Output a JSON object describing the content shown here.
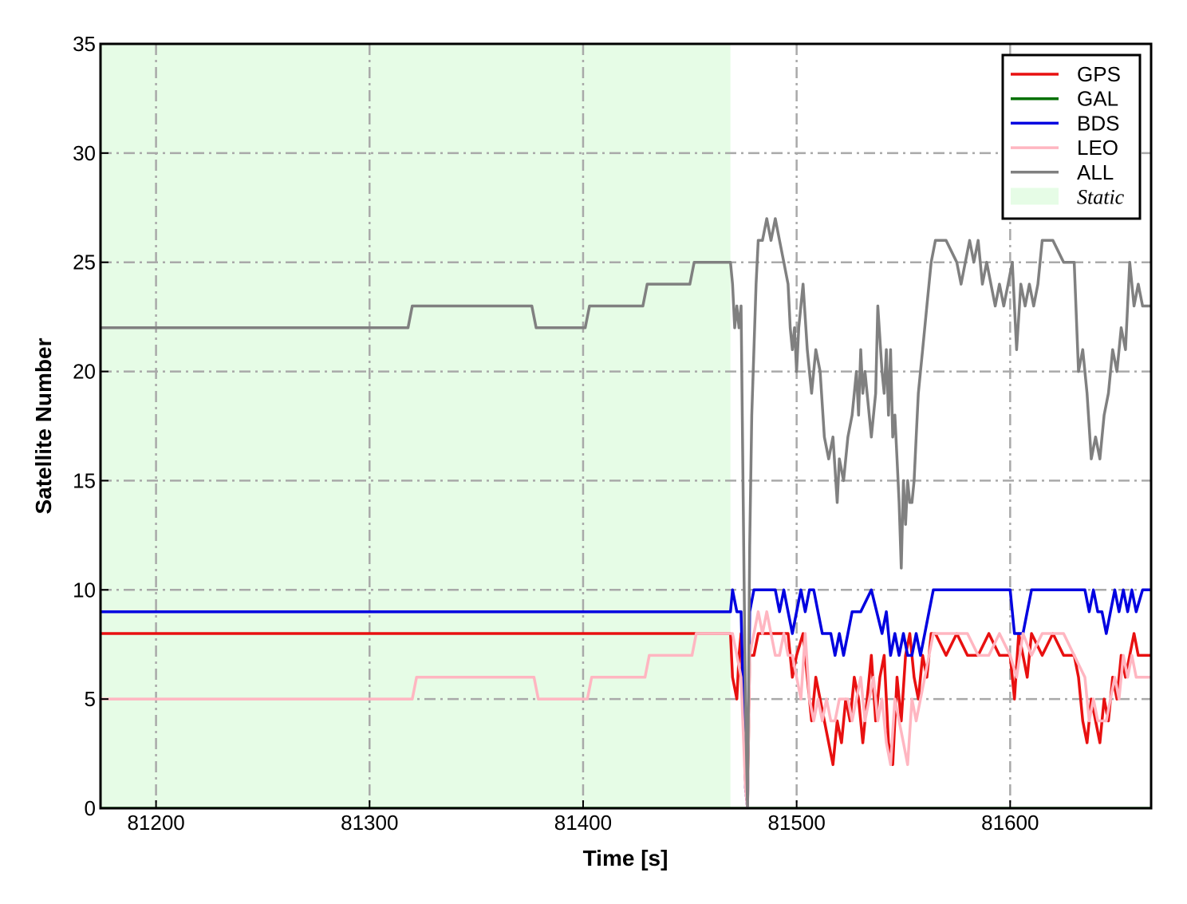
{
  "chart_data": {
    "type": "line",
    "title": "",
    "xlabel": "Time [s]",
    "ylabel": "Satellite Number",
    "xlim": [
      81174,
      81666
    ],
    "ylim": [
      0,
      35
    ],
    "xticks": [
      81200,
      81300,
      81400,
      81500,
      81600
    ],
    "yticks": [
      0,
      5,
      10,
      15,
      20,
      25,
      30,
      35
    ],
    "grid": true,
    "legend_position": "top-right",
    "shaded_region": {
      "name": "Static",
      "x": [
        81174,
        81469
      ],
      "color": "#e6fce6"
    },
    "series": [
      {
        "name": "GPS",
        "color": "#e81010",
        "x": [
          81174,
          81469,
          81470,
          81472,
          81473,
          81474,
          81476,
          81477,
          81478,
          81480,
          81482,
          81485,
          81488,
          81492,
          81496,
          81498,
          81500,
          81503,
          81505,
          81507,
          81509,
          81511,
          81513,
          81515,
          81517,
          81519,
          81521,
          81523,
          81525,
          81527,
          81529,
          81531,
          81533,
          81535,
          81537,
          81539,
          81541,
          81543,
          81545,
          81547,
          81549,
          81551,
          81553,
          81555,
          81557,
          81559,
          81561,
          81563,
          81565,
          81570,
          81575,
          81580,
          81585,
          81590,
          81595,
          81600,
          81602,
          81604,
          81606,
          81608,
          81610,
          81615,
          81620,
          81625,
          81630,
          81632,
          81634,
          81636,
          81638,
          81640,
          81642,
          81644,
          81646,
          81648,
          81650,
          81652,
          81654,
          81656,
          81658,
          81660,
          81662,
          81666
        ],
        "y": [
          8,
          8,
          6,
          5,
          7,
          8,
          1,
          0,
          7,
          7,
          8,
          8,
          8,
          8,
          8,
          6,
          7,
          8,
          6,
          4,
          6,
          5,
          4,
          3,
          2,
          4,
          3,
          5,
          4,
          6,
          5,
          3,
          5,
          7,
          4,
          6,
          7,
          3,
          2,
          6,
          4,
          7,
          8,
          6,
          5,
          7,
          6,
          8,
          8,
          7,
          8,
          7,
          7,
          8,
          7,
          7,
          5,
          8,
          7,
          6,
          8,
          7,
          8,
          7,
          7,
          6,
          4,
          3,
          5,
          4,
          3,
          5,
          4,
          6,
          5,
          7,
          6,
          7,
          8,
          7,
          7,
          7
        ]
      },
      {
        "name": "GAL",
        "color": "#007000",
        "x": [
          81174,
          81666
        ],
        "y": [
          0,
          0
        ]
      },
      {
        "name": "BDS",
        "color": "#0000e0",
        "x": [
          81174,
          81469,
          81470,
          81472,
          81474,
          81476,
          81477,
          81478,
          81480,
          81484,
          81490,
          81492,
          81494,
          81496,
          81498,
          81500,
          81502,
          81504,
          81506,
          81508,
          81510,
          81512,
          81514,
          81516,
          81518,
          81520,
          81522,
          81524,
          81526,
          81528,
          81530,
          81535,
          81540,
          81542,
          81544,
          81546,
          81548,
          81550,
          81552,
          81554,
          81556,
          81558,
          81560,
          81562,
          81564,
          81570,
          81580,
          81590,
          81600,
          81602,
          81606,
          81608,
          81610,
          81615,
          81620,
          81625,
          81630,
          81635,
          81637,
          81639,
          81641,
          81643,
          81645,
          81647,
          81649,
          81651,
          81653,
          81655,
          81657,
          81659,
          81662,
          81666
        ],
        "y": [
          9,
          9,
          10,
          9,
          9,
          1,
          0,
          9,
          10,
          10,
          10,
          9,
          10,
          9,
          8,
          9,
          10,
          9,
          10,
          10,
          9,
          8,
          8,
          8,
          7,
          8,
          7,
          8,
          9,
          9,
          9,
          10,
          8,
          9,
          7,
          8,
          7,
          8,
          7,
          7,
          8,
          7,
          8,
          9,
          10,
          10,
          10,
          10,
          10,
          8,
          8,
          9,
          10,
          10,
          10,
          10,
          10,
          10,
          9,
          10,
          9,
          9,
          8,
          9,
          10,
          9,
          10,
          9,
          10,
          9,
          10,
          10
        ]
      },
      {
        "name": "LEO",
        "color": "#ffb6c1",
        "x": [
          81174,
          81320,
          81322,
          81377,
          81379,
          81402,
          81404,
          81429,
          81431,
          81451,
          81453,
          81469,
          81470,
          81472,
          81474,
          81476,
          81477,
          81478,
          81480,
          81482,
          81484,
          81486,
          81488,
          81490,
          81492,
          81494,
          81496,
          81498,
          81500,
          81502,
          81504,
          81506,
          81508,
          81510,
          81512,
          81514,
          81516,
          81518,
          81520,
          81522,
          81524,
          81526,
          81528,
          81530,
          81532,
          81534,
          81536,
          81538,
          81540,
          81542,
          81544,
          81546,
          81548,
          81550,
          81552,
          81554,
          81556,
          81558,
          81560,
          81562,
          81564,
          81566,
          81570,
          81575,
          81580,
          81585,
          81590,
          81595,
          81600,
          81603,
          81606,
          81610,
          81615,
          81620,
          81625,
          81630,
          81635,
          81637,
          81639,
          81641,
          81643,
          81645,
          81647,
          81649,
          81651,
          81653,
          81655,
          81657,
          81659,
          81662,
          81666
        ],
        "y": [
          5,
          5,
          6,
          6,
          5,
          5,
          6,
          6,
          7,
          7,
          8,
          8,
          8,
          7,
          6,
          1,
          0,
          7,
          8,
          9,
          8,
          9,
          8,
          7,
          7,
          8,
          7,
          7,
          6,
          5,
          8,
          5,
          4,
          5,
          4,
          5,
          4,
          4,
          5,
          5,
          5,
          4,
          5,
          6,
          4,
          5,
          6,
          4,
          5,
          3,
          2,
          5,
          4,
          3,
          2,
          5,
          4,
          5,
          6,
          7,
          8,
          8,
          8,
          8,
          8,
          7,
          7,
          8,
          7,
          6,
          8,
          7,
          8,
          8,
          8,
          7,
          6,
          4,
          5,
          4,
          4,
          4,
          5,
          6,
          5,
          7,
          6,
          7,
          6,
          6,
          6
        ]
      },
      {
        "name": "ALL",
        "color": "#808080",
        "x": [
          81174,
          81318,
          81320,
          81376,
          81378,
          81401,
          81403,
          81428,
          81430,
          81450,
          81452,
          81469,
          81470,
          81471,
          81472,
          81473,
          81474,
          81476,
          81477,
          81478,
          81479,
          81480,
          81481,
          81482,
          81484,
          81486,
          81488,
          81490,
          81492,
          81494,
          81496,
          81497,
          81498,
          81499,
          81500,
          81501,
          81503,
          81505,
          81507,
          81509,
          81511,
          81513,
          81515,
          81517,
          81519,
          81520,
          81522,
          81524,
          81526,
          81528,
          81529,
          81530,
          81531,
          81532,
          81533,
          81535,
          81537,
          81538,
          81540,
          81541,
          81542,
          81543,
          81544,
          81545,
          81546,
          81547,
          81548,
          81549,
          81550,
          81551,
          81552,
          81553,
          81554,
          81555,
          81556,
          81557,
          81559,
          81561,
          81563,
          81565,
          81570,
          81575,
          81577,
          81579,
          81581,
          81583,
          81585,
          81587,
          81589,
          81591,
          81593,
          81595,
          81597,
          81599,
          81601,
          81603,
          81605,
          81607,
          81609,
          81611,
          81613,
          81615,
          81620,
          81625,
          81630,
          81632,
          81634,
          81636,
          81638,
          81640,
          81642,
          81644,
          81646,
          81648,
          81650,
          81652,
          81654,
          81656,
          81658,
          81660,
          81662,
          81666
        ],
        "y": [
          22,
          22,
          23,
          23,
          22,
          22,
          23,
          23,
          24,
          24,
          25,
          25,
          24,
          22,
          23,
          22,
          23,
          5,
          0,
          12,
          18,
          21,
          24,
          26,
          26,
          27,
          26,
          27,
          26,
          25,
          24,
          22,
          21,
          22,
          20,
          22,
          24,
          21,
          19,
          21,
          20,
          17,
          16,
          17,
          14,
          16,
          15,
          17,
          18,
          20,
          18,
          21,
          19,
          20,
          19,
          17,
          19,
          23,
          20,
          19,
          21,
          18,
          21,
          17,
          18,
          16,
          14,
          11,
          15,
          13,
          15,
          14,
          14,
          15,
          17,
          19,
          21,
          23,
          25,
          26,
          26,
          25,
          24,
          25,
          26,
          25,
          26,
          24,
          25,
          24,
          23,
          24,
          23,
          24,
          25,
          21,
          24,
          23,
          24,
          23,
          24,
          26,
          26,
          25,
          25,
          20,
          21,
          19,
          16,
          17,
          16,
          18,
          19,
          21,
          20,
          22,
          21,
          25,
          23,
          24,
          23,
          23
        ]
      }
    ]
  },
  "legend": {
    "items": [
      {
        "label": "GPS",
        "color": "#e81010",
        "kind": "line"
      },
      {
        "label": "GAL",
        "color": "#007000",
        "kind": "line"
      },
      {
        "label": "BDS",
        "color": "#0000e0",
        "kind": "line"
      },
      {
        "label": "LEO",
        "color": "#ffb6c1",
        "kind": "line"
      },
      {
        "label": "ALL",
        "color": "#808080",
        "kind": "line"
      },
      {
        "label": "Static",
        "color": "#e6fce6",
        "kind": "patch"
      }
    ]
  }
}
